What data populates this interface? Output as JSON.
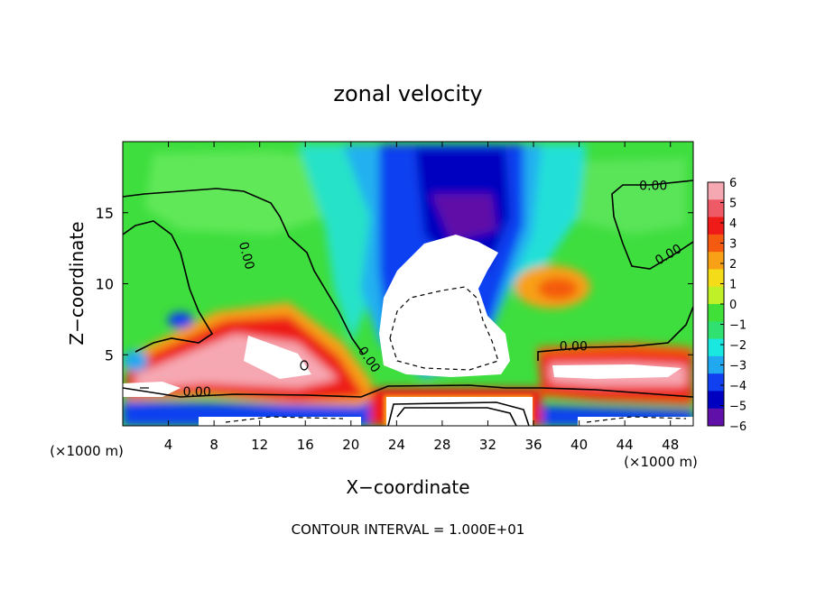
{
  "chart_data": {
    "type": "heatmap",
    "title": "zonal velocity",
    "xlabel": "X−coordinate",
    "ylabel": "Z−coordinate",
    "x_unit_left": "(×1000 m)",
    "x_unit_right": "(×1000 m)",
    "footer": "CONTOUR INTERVAL = 1.000E+01",
    "xlim": [
      0,
      50
    ],
    "ylim": [
      0,
      20
    ],
    "xticks": [
      4,
      8,
      12,
      16,
      20,
      24,
      28,
      32,
      36,
      40,
      44,
      48
    ],
    "yticks": [
      5,
      10,
      15
    ],
    "colorbar": {
      "range": [
        -6,
        6
      ],
      "ticks": [
        6,
        5,
        4,
        3,
        2,
        1,
        0,
        -1,
        -2,
        -3,
        -4,
        -5,
        -6
      ],
      "colors": [
        "#f6a8b2",
        "#ee5a66",
        "#ee1b18",
        "#f45a10",
        "#f8a016",
        "#f4dc18",
        "#c0f028",
        "#40e038",
        "#30e070",
        "#18e8e0",
        "#20a8f0",
        "#1040f0",
        "#0000c0",
        "#6010a8"
      ]
    },
    "contour_labels": [
      {
        "text": "0.00",
        "x": 10.5,
        "y": 11.9,
        "angle": 75
      },
      {
        "text": "0.00",
        "x": 6.5,
        "y": 2.1,
        "angle": 0
      },
      {
        "text": "0.00",
        "x": 21.3,
        "y": 4.5,
        "angle": 55
      },
      {
        "text": "0.00",
        "x": 39.5,
        "y": 5.3,
        "angle": 0
      },
      {
        "text": "0.00",
        "x": 46.5,
        "y": 16.6,
        "angle": 0
      },
      {
        "text": "0.00",
        "x": 48.0,
        "y": 11.8,
        "angle": -30
      }
    ]
  }
}
